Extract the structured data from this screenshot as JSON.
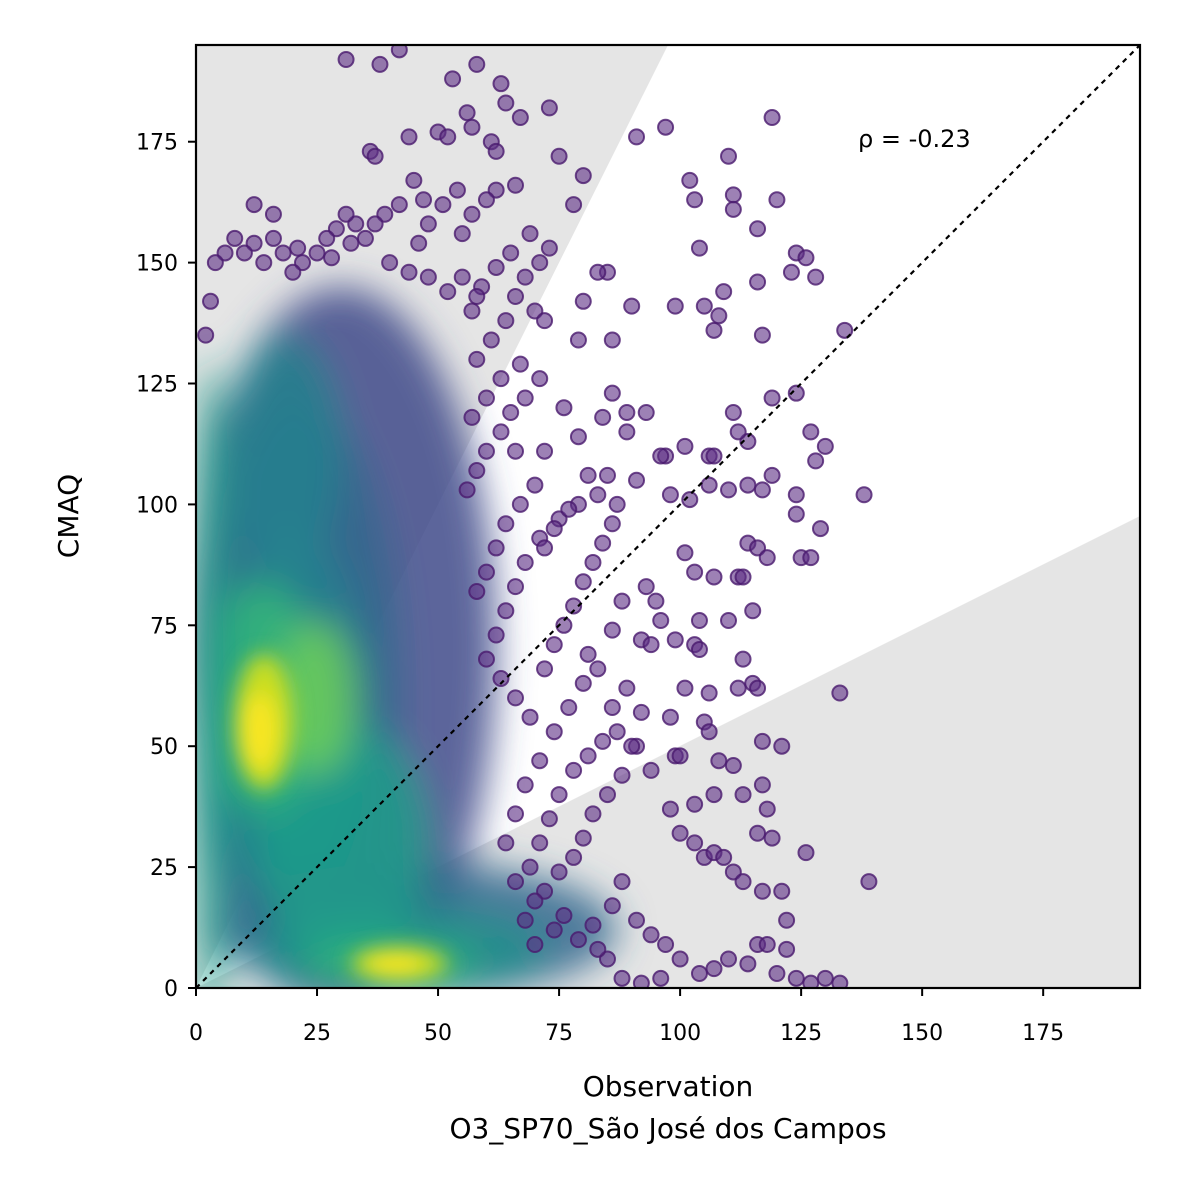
{
  "chart_data": {
    "type": "scatter",
    "xlabel": "Observation\nO3_SP70_São José dos Campos",
    "ylabel": "CMAQ",
    "xlim": [
      0,
      195
    ],
    "ylim": [
      0,
      195
    ],
    "xticks": [
      "0",
      "25",
      "50",
      "75",
      "100",
      "125",
      "150",
      "175"
    ],
    "yticks": [
      "0",
      "25",
      "50",
      "75",
      "100",
      "125",
      "150",
      "175"
    ],
    "annotation": "ρ = -0.23",
    "reference_line": "1:1 dotted",
    "shaded_regions": "outside factor-of-2 band",
    "colormap": "density (viridis)",
    "density_hotspots": [
      {
        "x": 13,
        "y": 55
      },
      {
        "x": 42,
        "y": 5
      }
    ],
    "outlier_points": [
      [
        31,
        192
      ],
      [
        42,
        194
      ],
      [
        38,
        191
      ],
      [
        58,
        191
      ],
      [
        53,
        188
      ],
      [
        63,
        187
      ],
      [
        64,
        183
      ],
      [
        67,
        180
      ],
      [
        73,
        182
      ],
      [
        56,
        181
      ],
      [
        57,
        178
      ],
      [
        44,
        176
      ],
      [
        50,
        177
      ],
      [
        52,
        176
      ],
      [
        61,
        175
      ],
      [
        62,
        173
      ],
      [
        36,
        173
      ],
      [
        37,
        172
      ],
      [
        80,
        168
      ],
      [
        75,
        172
      ],
      [
        91,
        176
      ],
      [
        97,
        178
      ],
      [
        119,
        180
      ],
      [
        110,
        172
      ],
      [
        102,
        167
      ],
      [
        111,
        164
      ],
      [
        103,
        163
      ],
      [
        111,
        161
      ],
      [
        120,
        163
      ],
      [
        116,
        157
      ],
      [
        66,
        166
      ],
      [
        62,
        165
      ],
      [
        78,
        162
      ],
      [
        104,
        153
      ],
      [
        124,
        152
      ],
      [
        126,
        151
      ],
      [
        128,
        147
      ],
      [
        123,
        148
      ],
      [
        116,
        146
      ],
      [
        109,
        144
      ],
      [
        99,
        141
      ],
      [
        105,
        141
      ],
      [
        117,
        135
      ],
      [
        107,
        136
      ],
      [
        108,
        139
      ],
      [
        134,
        136
      ],
      [
        90,
        141
      ],
      [
        85,
        148
      ],
      [
        80,
        142
      ],
      [
        83,
        148
      ],
      [
        86,
        134
      ],
      [
        79,
        134
      ],
      [
        70,
        140
      ],
      [
        72,
        138
      ],
      [
        76,
        120
      ],
      [
        84,
        118
      ],
      [
        89,
        119
      ],
      [
        93,
        119
      ],
      [
        86,
        123
      ],
      [
        124,
        123
      ],
      [
        119,
        122
      ],
      [
        114,
        113
      ],
      [
        112,
        115
      ],
      [
        111,
        119
      ],
      [
        127,
        115
      ],
      [
        130,
        112
      ],
      [
        106,
        110
      ],
      [
        107,
        110
      ],
      [
        101,
        112
      ],
      [
        97,
        110
      ],
      [
        96,
        110
      ],
      [
        89,
        115
      ],
      [
        79,
        114
      ],
      [
        72,
        111
      ],
      [
        66,
        111
      ],
      [
        81,
        106
      ],
      [
        85,
        106
      ],
      [
        91,
        105
      ],
      [
        98,
        102
      ],
      [
        102,
        101
      ],
      [
        106,
        104
      ],
      [
        110,
        103
      ],
      [
        114,
        104
      ],
      [
        117,
        103
      ],
      [
        119,
        106
      ],
      [
        124,
        102
      ],
      [
        128,
        109
      ],
      [
        138,
        102
      ],
      [
        124,
        98
      ],
      [
        129,
        95
      ],
      [
        114,
        92
      ],
      [
        116,
        91
      ],
      [
        118,
        89
      ],
      [
        112,
        85
      ],
      [
        113,
        85
      ],
      [
        107,
        85
      ],
      [
        101,
        90
      ],
      [
        103,
        86
      ],
      [
        125,
        89
      ],
      [
        127,
        89
      ],
      [
        93,
        83
      ],
      [
        95,
        80
      ],
      [
        96,
        76
      ],
      [
        104,
        76
      ],
      [
        110,
        76
      ],
      [
        115,
        78
      ],
      [
        88,
        80
      ],
      [
        86,
        74
      ],
      [
        81,
        69
      ],
      [
        92,
        72
      ],
      [
        94,
        71
      ],
      [
        99,
        72
      ],
      [
        103,
        71
      ],
      [
        104,
        70
      ],
      [
        113,
        68
      ],
      [
        101,
        62
      ],
      [
        106,
        61
      ],
      [
        115,
        63
      ],
      [
        116,
        62
      ],
      [
        112,
        62
      ],
      [
        98,
        56
      ],
      [
        105,
        55
      ],
      [
        106,
        53
      ],
      [
        99,
        48
      ],
      [
        100,
        48
      ],
      [
        108,
        47
      ],
      [
        111,
        46
      ],
      [
        107,
        40
      ],
      [
        113,
        40
      ],
      [
        117,
        42
      ],
      [
        118,
        37
      ],
      [
        116,
        32
      ],
      [
        119,
        31
      ],
      [
        121,
        50
      ],
      [
        117,
        51
      ],
      [
        133,
        61
      ],
      [
        103,
        38
      ],
      [
        98,
        37
      ],
      [
        100,
        32
      ],
      [
        103,
        30
      ],
      [
        105,
        27
      ],
      [
        107,
        28
      ],
      [
        109,
        27
      ],
      [
        111,
        24
      ],
      [
        113,
        22
      ],
      [
        117,
        20
      ],
      [
        121,
        20
      ],
      [
        126,
        28
      ],
      [
        139,
        22
      ],
      [
        122,
        14
      ],
      [
        116,
        9
      ],
      [
        118,
        9
      ],
      [
        122,
        8
      ],
      [
        110,
        6
      ],
      [
        114,
        5
      ],
      [
        107,
        4
      ],
      [
        120,
        3
      ],
      [
        124,
        2
      ],
      [
        127,
        1
      ],
      [
        130,
        2
      ],
      [
        133,
        1
      ],
      [
        91,
        50
      ],
      [
        94,
        45
      ],
      [
        88,
        44
      ],
      [
        85,
        40
      ],
      [
        82,
        36
      ],
      [
        80,
        31
      ],
      [
        78,
        27
      ],
      [
        75,
        24
      ],
      [
        72,
        20
      ],
      [
        70,
        18
      ],
      [
        76,
        15
      ],
      [
        82,
        13
      ],
      [
        86,
        17
      ],
      [
        88,
        22
      ],
      [
        91,
        14
      ],
      [
        94,
        11
      ],
      [
        97,
        9
      ],
      [
        100,
        6
      ],
      [
        104,
        3
      ],
      [
        96,
        2
      ],
      [
        92,
        1
      ],
      [
        88,
        2
      ],
      [
        85,
        6
      ],
      [
        83,
        8
      ],
      [
        79,
        10
      ],
      [
        74,
        12
      ],
      [
        70,
        9
      ],
      [
        68,
        14
      ],
      [
        66,
        22
      ],
      [
        64,
        30
      ],
      [
        66,
        36
      ],
      [
        68,
        42
      ],
      [
        71,
        47
      ],
      [
        74,
        53
      ],
      [
        77,
        58
      ],
      [
        80,
        63
      ],
      [
        83,
        66
      ],
      [
        86,
        58
      ],
      [
        89,
        62
      ],
      [
        92,
        57
      ],
      [
        90,
        50
      ],
      [
        87,
        53
      ],
      [
        84,
        51
      ],
      [
        81,
        48
      ],
      [
        78,
        45
      ],
      [
        75,
        40
      ],
      [
        73,
        35
      ],
      [
        71,
        30
      ],
      [
        69,
        25
      ],
      [
        72,
        66
      ],
      [
        74,
        71
      ],
      [
        76,
        75
      ],
      [
        78,
        79
      ],
      [
        80,
        84
      ],
      [
        82,
        88
      ],
      [
        84,
        92
      ],
      [
        86,
        96
      ],
      [
        87,
        100
      ],
      [
        83,
        102
      ],
      [
        79,
        100
      ],
      [
        75,
        97
      ],
      [
        71,
        93
      ],
      [
        68,
        88
      ],
      [
        66,
        83
      ],
      [
        64,
        78
      ],
      [
        62,
        73
      ],
      [
        60,
        68
      ],
      [
        63,
        64
      ],
      [
        66,
        60
      ],
      [
        69,
        56
      ],
      [
        72,
        91
      ],
      [
        74,
        95
      ],
      [
        77,
        99
      ],
      [
        70,
        104
      ],
      [
        67,
        100
      ],
      [
        64,
        96
      ],
      [
        62,
        91
      ],
      [
        60,
        86
      ],
      [
        58,
        82
      ],
      [
        56,
        103
      ],
      [
        58,
        107
      ],
      [
        60,
        111
      ],
      [
        63,
        115
      ],
      [
        65,
        119
      ],
      [
        68,
        122
      ],
      [
        71,
        126
      ],
      [
        67,
        129
      ],
      [
        63,
        126
      ],
      [
        60,
        122
      ],
      [
        57,
        118
      ],
      [
        58,
        130
      ],
      [
        61,
        134
      ],
      [
        64,
        138
      ],
      [
        66,
        143
      ],
      [
        68,
        147
      ],
      [
        71,
        150
      ],
      [
        73,
        153
      ],
      [
        69,
        156
      ],
      [
        65,
        152
      ],
      [
        62,
        149
      ],
      [
        59,
        145
      ],
      [
        57,
        140
      ],
      [
        55,
        156
      ],
      [
        57,
        160
      ],
      [
        60,
        163
      ],
      [
        54,
        165
      ],
      [
        51,
        162
      ],
      [
        48,
        158
      ],
      [
        46,
        154
      ],
      [
        47,
        163
      ],
      [
        45,
        167
      ],
      [
        42,
        162
      ],
      [
        39,
        160
      ],
      [
        37,
        158
      ],
      [
        35,
        155
      ],
      [
        33,
        158
      ],
      [
        31,
        160
      ],
      [
        29,
        157
      ],
      [
        27,
        155
      ],
      [
        25,
        152
      ],
      [
        22,
        150
      ],
      [
        20,
        148
      ],
      [
        18,
        152
      ],
      [
        16,
        155
      ],
      [
        14,
        150
      ],
      [
        12,
        154
      ],
      [
        10,
        152
      ],
      [
        8,
        155
      ],
      [
        6,
        152
      ],
      [
        4,
        150
      ],
      [
        3,
        142
      ],
      [
        2,
        135
      ],
      [
        12,
        162
      ],
      [
        16,
        160
      ],
      [
        21,
        153
      ],
      [
        28,
        151
      ],
      [
        32,
        154
      ],
      [
        40,
        150
      ],
      [
        44,
        148
      ],
      [
        48,
        147
      ],
      [
        52,
        144
      ],
      [
        55,
        147
      ],
      [
        58,
        143
      ]
    ]
  }
}
